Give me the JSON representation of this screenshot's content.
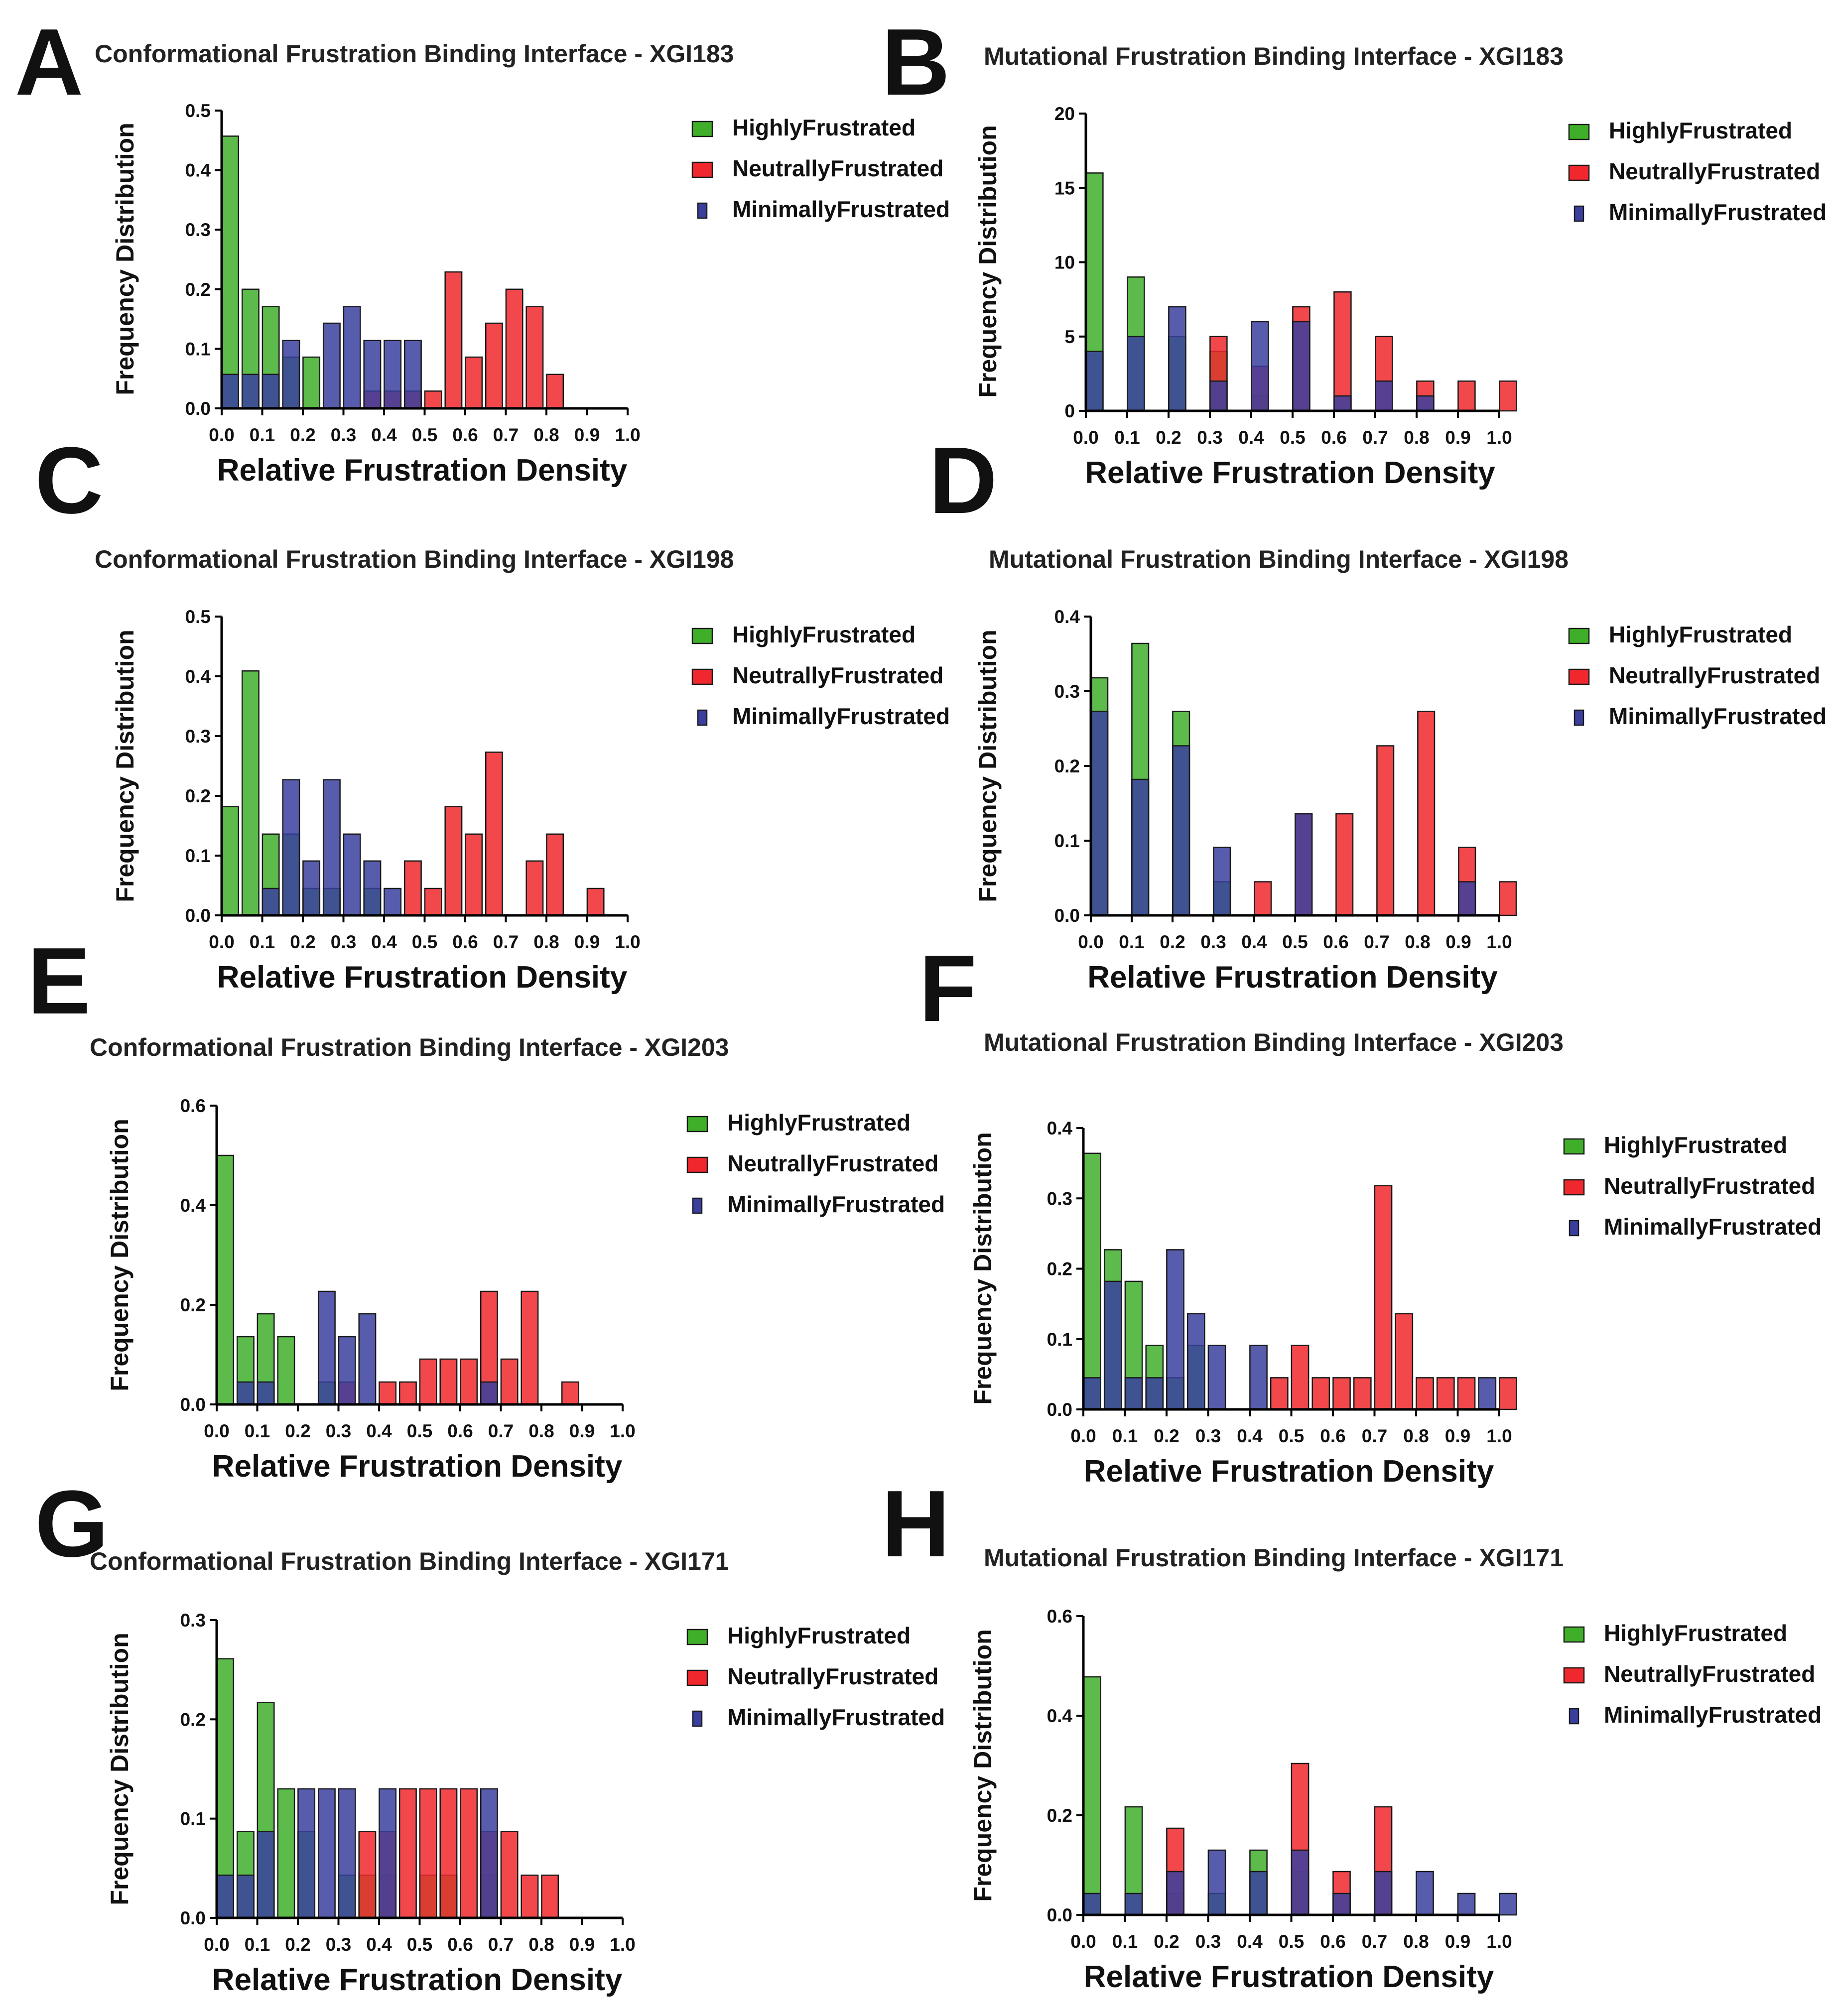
{
  "colors": {
    "HighlyFrustrated": "#3faf2a",
    "NeutrallyFrustrated": "#f0282d",
    "MinimallyFrustrated": "#3a3f9e"
  },
  "legend_labels": [
    "HighlyFrustrated",
    "NeutrallyFrustrated",
    "MinimallyFrustrated"
  ],
  "chart_data": [
    {
      "panel": "A",
      "type": "bar",
      "title": "Conformational Frustration Binding Interface - XGI183",
      "xlabel": "Relative Frustration Density",
      "ylabel": "Frequency Distribution",
      "xlim": [
        0.0,
        1.0
      ],
      "ylim": [
        0,
        0.5
      ],
      "yticks": [
        "0.0",
        "0.1",
        "0.2",
        "0.3",
        "0.4",
        "0.5"
      ],
      "xticks": [
        "0.0",
        "0.1",
        "0.2",
        "0.3",
        "0.4",
        "0.5",
        "0.6",
        "0.7",
        "0.8",
        "0.9",
        "1.0"
      ],
      "series": [
        {
          "name": "HighlyFrustrated",
          "x": [
            0.0,
            0.05,
            0.1,
            0.15,
            0.2
          ],
          "values": [
            0.457,
            0.2,
            0.171,
            0.086,
            0.086
          ]
        },
        {
          "name": "NeutrallyFrustrated",
          "x": [
            0.35,
            0.4,
            0.45,
            0.5,
            0.55,
            0.6,
            0.65,
            0.7,
            0.75,
            0.8
          ],
          "values": [
            0.029,
            0.029,
            0.029,
            0.029,
            0.229,
            0.086,
            0.143,
            0.2,
            0.171,
            0.057
          ]
        },
        {
          "name": "MinimallyFrustrated",
          "x": [
            0.0,
            0.05,
            0.1,
            0.15,
            0.25,
            0.3,
            0.35,
            0.4,
            0.45
          ],
          "values": [
            0.057,
            0.057,
            0.057,
            0.114,
            0.143,
            0.171,
            0.114,
            0.114,
            0.114
          ]
        }
      ]
    },
    {
      "panel": "B",
      "type": "bar",
      "title": "Mutational Frustration Binding Interface - XGI183",
      "xlabel": "Relative Frustration Density",
      "ylabel": "Frequency Distribution",
      "xlim": [
        0.0,
        1.0
      ],
      "ylim": [
        0,
        20
      ],
      "yticks": [
        "0",
        "5",
        "10",
        "15",
        "20"
      ],
      "xticks": [
        "0.0",
        "0.1",
        "0.2",
        "0.3",
        "0.4",
        "0.5",
        "0.6",
        "0.7",
        "0.8",
        "0.9",
        "1.0"
      ],
      "series": [
        {
          "name": "HighlyFrustrated",
          "x": [
            0.0,
            0.1,
            0.2,
            0.3,
            0.4
          ],
          "values": [
            16,
            9,
            5,
            4,
            1
          ]
        },
        {
          "name": "NeutrallyFrustrated",
          "x": [
            0.3,
            0.4,
            0.5,
            0.6,
            0.7,
            0.8,
            0.9,
            1.0
          ],
          "values": [
            5,
            3,
            7,
            8,
            5,
            2,
            2,
            2
          ]
        },
        {
          "name": "MinimallyFrustrated",
          "x": [
            0.0,
            0.1,
            0.2,
            0.3,
            0.4,
            0.5,
            0.6,
            0.7,
            0.8
          ],
          "values": [
            4,
            5,
            7,
            2,
            6,
            6,
            1,
            2,
            1
          ]
        }
      ]
    },
    {
      "panel": "C",
      "type": "bar",
      "title": "Conformational Frustration Binding Interface - XGI198",
      "xlabel": "Relative Frustration Density",
      "ylabel": "Frequency Distribution",
      "xlim": [
        0.0,
        1.0
      ],
      "ylim": [
        0,
        0.5
      ],
      "yticks": [
        "0.0",
        "0.1",
        "0.2",
        "0.3",
        "0.4",
        "0.5"
      ],
      "xticks": [
        "0.0",
        "0.1",
        "0.2",
        "0.3",
        "0.4",
        "0.5",
        "0.6",
        "0.7",
        "0.8",
        "0.9",
        "1.0"
      ],
      "series": [
        {
          "name": "HighlyFrustrated",
          "x": [
            0.0,
            0.05,
            0.1,
            0.15,
            0.2,
            0.25,
            0.35
          ],
          "values": [
            0.182,
            0.409,
            0.136,
            0.136,
            0.045,
            0.045,
            0.045
          ]
        },
        {
          "name": "NeutrallyFrustrated",
          "x": [
            0.45,
            0.5,
            0.55,
            0.6,
            0.65,
            0.75,
            0.8,
            0.9
          ],
          "values": [
            0.091,
            0.045,
            0.182,
            0.136,
            0.273,
            0.091,
            0.136,
            0.045
          ]
        },
        {
          "name": "MinimallyFrustrated",
          "x": [
            0.1,
            0.15,
            0.2,
            0.25,
            0.3,
            0.35,
            0.4
          ],
          "values": [
            0.045,
            0.227,
            0.091,
            0.227,
            0.136,
            0.091,
            0.045
          ]
        }
      ]
    },
    {
      "panel": "D",
      "type": "bar",
      "title": "Mutational Frustration Binding Interface - XGI198",
      "xlabel": "Relative Frustration Density",
      "ylabel": "Frequency Distribution",
      "xlim": [
        0.0,
        1.0
      ],
      "ylim": [
        0,
        0.4
      ],
      "yticks": [
        "0.0",
        "0.1",
        "0.2",
        "0.3",
        "0.4"
      ],
      "xticks": [
        "0.0",
        "0.1",
        "0.2",
        "0.3",
        "0.4",
        "0.5",
        "0.6",
        "0.7",
        "0.8",
        "0.9",
        "1.0"
      ],
      "series": [
        {
          "name": "HighlyFrustrated",
          "x": [
            0.0,
            0.1,
            0.2,
            0.3
          ],
          "values": [
            0.318,
            0.364,
            0.273,
            0.045
          ]
        },
        {
          "name": "NeutrallyFrustrated",
          "x": [
            0.4,
            0.5,
            0.6,
            0.7,
            0.8,
            0.9,
            1.0
          ],
          "values": [
            0.045,
            0.136,
            0.136,
            0.227,
            0.273,
            0.091,
            0.045
          ]
        },
        {
          "name": "MinimallyFrustrated",
          "x": [
            0.0,
            0.1,
            0.2,
            0.3,
            0.5,
            0.9
          ],
          "values": [
            0.273,
            0.182,
            0.227,
            0.091,
            0.136,
            0.045
          ]
        }
      ]
    },
    {
      "panel": "E",
      "type": "bar",
      "title": "Conformational Frustration Binding Interface - XGI203",
      "xlabel": "Relative Frustration Density",
      "ylabel": "Frequency Distribution",
      "xlim": [
        0.0,
        1.0
      ],
      "ylim": [
        0,
        0.6
      ],
      "yticks": [
        "0.0",
        "0.2",
        "0.4",
        "0.6"
      ],
      "xticks": [
        "0.0",
        "0.1",
        "0.2",
        "0.3",
        "0.4",
        "0.5",
        "0.6",
        "0.7",
        "0.8",
        "0.9",
        "1.0"
      ],
      "series": [
        {
          "name": "HighlyFrustrated",
          "x": [
            0.0,
            0.05,
            0.1,
            0.15,
            0.25
          ],
          "values": [
            0.5,
            0.136,
            0.182,
            0.136,
            0.045
          ]
        },
        {
          "name": "NeutrallyFrustrated",
          "x": [
            0.3,
            0.4,
            0.45,
            0.5,
            0.55,
            0.6,
            0.65,
            0.7,
            0.75,
            0.85
          ],
          "values": [
            0.045,
            0.045,
            0.045,
            0.091,
            0.091,
            0.091,
            0.227,
            0.091,
            0.227,
            0.045
          ]
        },
        {
          "name": "MinimallyFrustrated",
          "x": [
            0.05,
            0.1,
            0.25,
            0.3,
            0.35,
            0.65
          ],
          "values": [
            0.045,
            0.045,
            0.227,
            0.136,
            0.182,
            0.045
          ]
        }
      ]
    },
    {
      "panel": "F",
      "type": "bar",
      "title": "Mutational Frustration Binding Interface - XGI203",
      "xlabel": "Relative Frustration Density",
      "ylabel": "Frequency Distribution",
      "xlim": [
        0.0,
        1.0
      ],
      "ylim": [
        0,
        0.4
      ],
      "yticks": [
        "0.0",
        "0.1",
        "0.2",
        "0.3",
        "0.4"
      ],
      "xticks": [
        "0.0",
        "0.1",
        "0.2",
        "0.3",
        "0.4",
        "0.5",
        "0.6",
        "0.7",
        "0.8",
        "0.9",
        "1.0"
      ],
      "series": [
        {
          "name": "HighlyFrustrated",
          "x": [
            0.0,
            0.05,
            0.1,
            0.15,
            0.2,
            0.25
          ],
          "values": [
            0.364,
            0.227,
            0.182,
            0.091,
            0.045,
            0.091
          ]
        },
        {
          "name": "NeutrallyFrustrated",
          "x": [
            0.45,
            0.5,
            0.55,
            0.6,
            0.65,
            0.7,
            0.75,
            0.8,
            0.85,
            0.9,
            1.0
          ],
          "values": [
            0.045,
            0.091,
            0.045,
            0.045,
            0.045,
            0.318,
            0.136,
            0.045,
            0.045,
            0.045,
            0.045
          ]
        },
        {
          "name": "MinimallyFrustrated",
          "x": [
            0.0,
            0.05,
            0.1,
            0.15,
            0.2,
            0.25,
            0.3,
            0.4,
            0.95
          ],
          "values": [
            0.045,
            0.182,
            0.045,
            0.045,
            0.227,
            0.136,
            0.091,
            0.091,
            0.045
          ]
        }
      ]
    },
    {
      "panel": "G",
      "type": "bar",
      "title": "Conformational Frustration Binding Interface - XGI171",
      "xlabel": "Relative Frustration Density",
      "ylabel": "Frequency Distribution",
      "xlim": [
        0.0,
        1.0
      ],
      "ylim": [
        0,
        0.3
      ],
      "yticks": [
        "0.0",
        "0.1",
        "0.2",
        "0.3"
      ],
      "xticks": [
        "0.0",
        "0.1",
        "0.2",
        "0.3",
        "0.4",
        "0.5",
        "0.6",
        "0.7",
        "0.8",
        "0.9",
        "1.0"
      ],
      "series": [
        {
          "name": "HighlyFrustrated",
          "x": [
            0.0,
            0.05,
            0.1,
            0.15,
            0.2,
            0.3,
            0.35,
            0.4,
            0.5,
            0.55,
            0.65
          ],
          "values": [
            0.261,
            0.087,
            0.217,
            0.13,
            0.087,
            0.043,
            0.043,
            0.043,
            0.043,
            0.043,
            0.043
          ]
        },
        {
          "name": "NeutrallyFrustrated",
          "x": [
            0.35,
            0.4,
            0.45,
            0.5,
            0.55,
            0.6,
            0.65,
            0.7,
            0.75,
            0.8
          ],
          "values": [
            0.087,
            0.087,
            0.13,
            0.13,
            0.13,
            0.13,
            0.087,
            0.087,
            0.043,
            0.043
          ]
        },
        {
          "name": "MinimallyFrustrated",
          "x": [
            0.0,
            0.05,
            0.1,
            0.2,
            0.25,
            0.3,
            0.4,
            0.65
          ],
          "values": [
            0.043,
            0.043,
            0.087,
            0.13,
            0.13,
            0.13,
            0.13,
            0.13
          ]
        }
      ]
    },
    {
      "panel": "H",
      "type": "bar",
      "title": "Mutational Frustration Binding Interface - XGI171",
      "xlabel": "Relative Frustration Density",
      "ylabel": "Frequency Distribution",
      "xlim": [
        0.0,
        1.0
      ],
      "ylim": [
        0,
        0.6
      ],
      "yticks": [
        "0.0",
        "0.2",
        "0.4",
        "0.6"
      ],
      "xticks": [
        "0.0",
        "0.1",
        "0.2",
        "0.3",
        "0.4",
        "0.5",
        "0.6",
        "0.7",
        "0.8",
        "0.9",
        "1.0"
      ],
      "series": [
        {
          "name": "HighlyFrustrated",
          "x": [
            0.0,
            0.1,
            0.2,
            0.3,
            0.4,
            0.5
          ],
          "values": [
            0.478,
            0.217,
            0.043,
            0.043,
            0.13,
            0.087
          ]
        },
        {
          "name": "NeutrallyFrustrated",
          "x": [
            0.2,
            0.5,
            0.6,
            0.7
          ],
          "values": [
            0.174,
            0.304,
            0.087,
            0.217
          ]
        },
        {
          "name": "MinimallyFrustrated",
          "x": [
            0.0,
            0.1,
            0.2,
            0.3,
            0.4,
            0.5,
            0.6,
            0.7,
            0.8,
            0.9,
            1.0
          ],
          "values": [
            0.043,
            0.043,
            0.087,
            0.13,
            0.087,
            0.13,
            0.043,
            0.087,
            0.087,
            0.043,
            0.043
          ]
        }
      ]
    }
  ]
}
